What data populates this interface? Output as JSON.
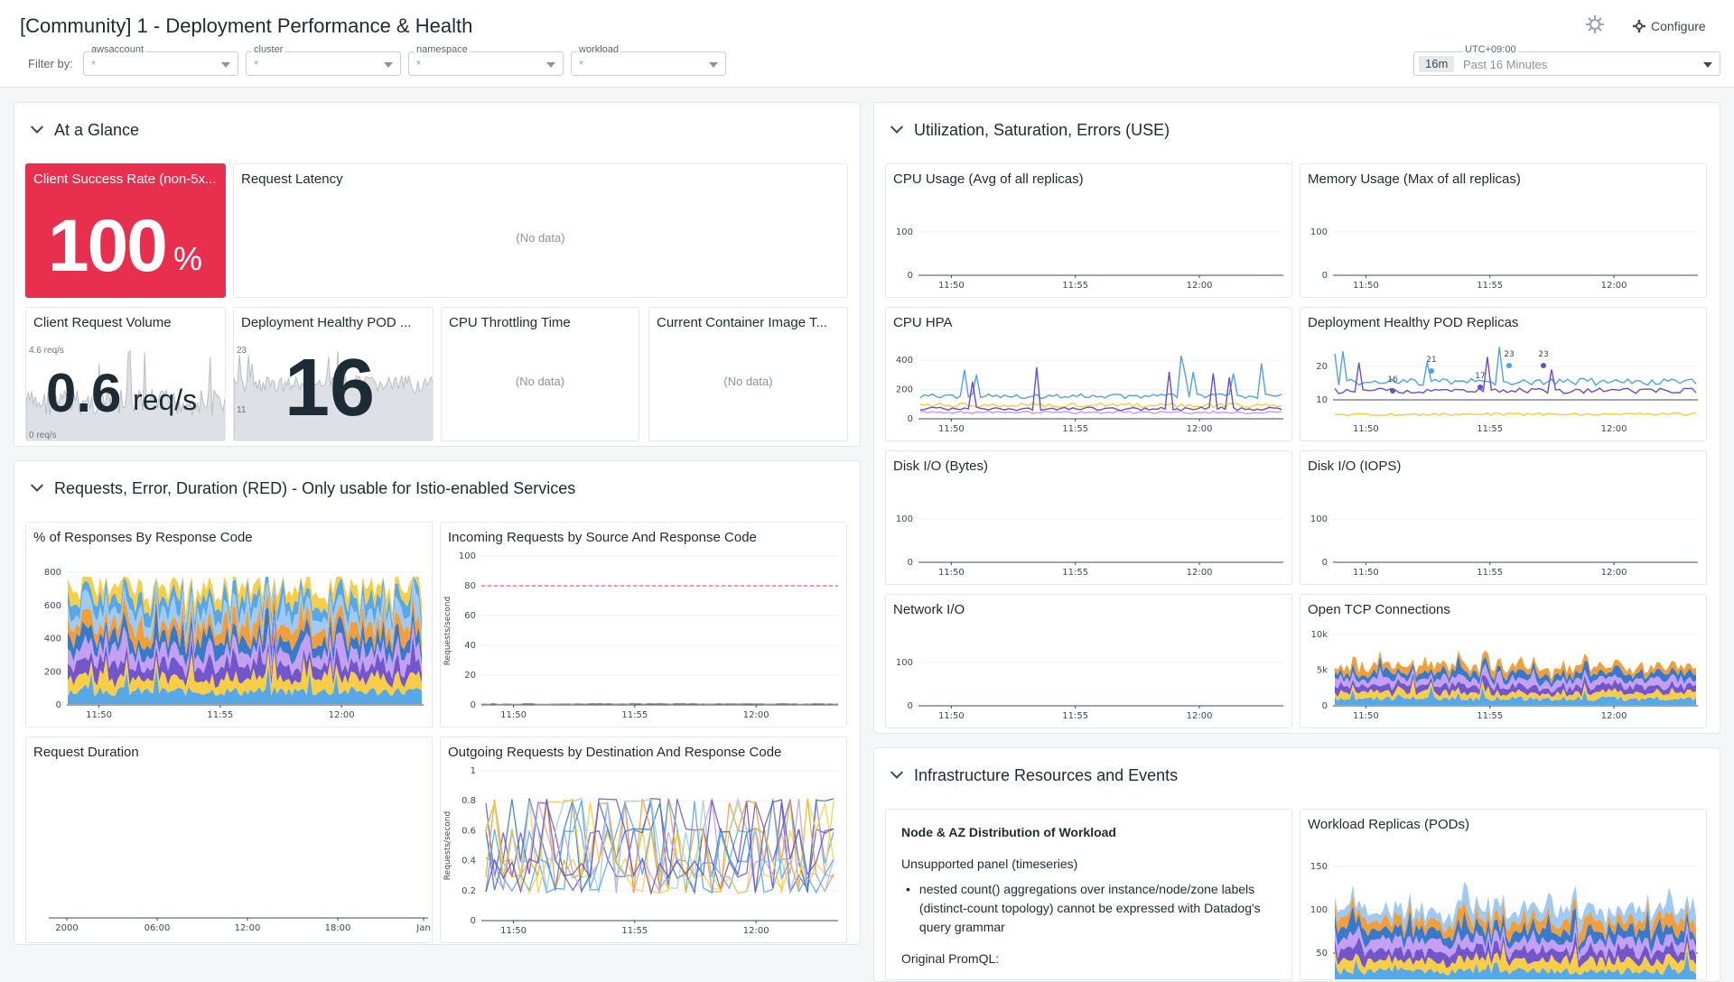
{
  "header": {
    "title": "[Community] 1 - Deployment Performance & Health",
    "configure_label": "Configure",
    "filter_by_label": "Filter by:",
    "filters": [
      {
        "label": "awsaccount",
        "value": "*"
      },
      {
        "label": "cluster",
        "value": "*"
      },
      {
        "label": "namespace",
        "value": "*"
      },
      {
        "label": "workload",
        "value": "*"
      }
    ],
    "time": {
      "timezone": "UTC+09:00",
      "badge": "16m",
      "range": "Past 16 Minutes"
    }
  },
  "groups": {
    "glance": "At a Glance",
    "red": "Requests, Error, Duration (RED) - Only usable for Istio-enabled Services",
    "use": "Utilization, Saturation, Errors (USE)",
    "infra": "Infrastructure Resources and Events"
  },
  "widgets": {
    "client_success": {
      "title": "Client Success Rate (non-5x...",
      "value": "100",
      "unit": "%"
    },
    "request_latency": {
      "title": "Request Latency",
      "nodata": "(No data)"
    },
    "client_request_volume": {
      "title": "Client Request Volume",
      "value": "0.6",
      "unit": "req/s",
      "max_label": "4.6 req/s",
      "min_label": "0 req/s"
    },
    "deployment_healthy_pod": {
      "title": "Deployment Healthy POD ...",
      "value": "16",
      "max_label": "23",
      "min_label": "11"
    },
    "cpu_throttling": {
      "title": "CPU Throttling Time",
      "nodata": "(No data)"
    },
    "container_image": {
      "title": "Current Container Image T...",
      "nodata": "(No data)"
    },
    "pct_responses": {
      "title": "% of Responses By Response Code",
      "y_ticks": [
        "800",
        "600",
        "400",
        "200",
        "0"
      ],
      "x_ticks": [
        "11:50",
        "11:55",
        "12:00"
      ]
    },
    "incoming_requests": {
      "title": "Incoming Requests by Source And Response Code",
      "y_ticks": [
        "100",
        "80",
        "60",
        "40",
        "20",
        "0"
      ],
      "x_ticks": [
        "11:50",
        "11:55",
        "12:00"
      ],
      "y_axis_label": "Requests/second"
    },
    "request_duration": {
      "title": "Request Duration",
      "x_ticks": [
        "2000",
        "06:00",
        "12:00",
        "18:00",
        "Jan"
      ]
    },
    "outgoing_requests": {
      "title": "Outgoing Requests by Destination And Response Code",
      "y_ticks": [
        "1",
        "0.8",
        "0.6",
        "0.4",
        "0.2",
        "0"
      ],
      "x_ticks": [
        "11:50",
        "11:55",
        "12:00"
      ],
      "y_axis_label": "Requests/second"
    },
    "cpu_usage": {
      "title": "CPU Usage (Avg of all replicas)",
      "y_ticks": [
        "100",
        "0"
      ],
      "x_ticks": [
        "11:50",
        "11:55",
        "12:00"
      ]
    },
    "memory_usage": {
      "title": "Memory Usage (Max of all replicas)",
      "y_ticks": [
        "100",
        "0"
      ],
      "x_ticks": [
        "11:50",
        "11:55",
        "12:00"
      ]
    },
    "cpu_hpa": {
      "title": "CPU HPA",
      "y_ticks": [
        "400",
        "200",
        "0"
      ],
      "x_ticks": [
        "11:50",
        "11:55",
        "12:00"
      ]
    },
    "deployment_healthy_replicas": {
      "title": "Deployment Healthy POD Replicas",
      "y_ticks": [
        "20",
        "10"
      ],
      "x_ticks": [
        "11:50",
        "11:55",
        "12:00"
      ],
      "peak_labels": [
        "16",
        "21",
        "17",
        "23",
        "23"
      ]
    },
    "disk_io_bytes": {
      "title": "Disk I/O (Bytes)",
      "y_ticks": [
        "100",
        "0"
      ],
      "x_ticks": [
        "11:50",
        "11:55",
        "12:00"
      ]
    },
    "disk_io_iops": {
      "title": "Disk I/O (IOPS)",
      "y_ticks": [
        "100",
        "0"
      ],
      "x_ticks": [
        "11:50",
        "11:55",
        "12:00"
      ]
    },
    "network_io": {
      "title": "Network I/O",
      "y_ticks": [
        "100",
        "0"
      ],
      "x_ticks": [
        "11:50",
        "11:55",
        "12:00"
      ]
    },
    "open_tcp": {
      "title": "Open TCP Connections",
      "y_ticks": [
        "10k",
        "5k",
        "0"
      ],
      "x_ticks": [
        "11:50",
        "11:55",
        "12:00"
      ]
    },
    "node_az": {
      "title": "Node & AZ Distribution of Workload",
      "unsupported": "Unsupported panel (timeseries)",
      "bullet": "nested count() aggregations over instance/node/zone labels (distinct-count topology) cannot be expressed with Datadog's query grammar",
      "promql_label": "Original PromQL:"
    },
    "workload_replicas": {
      "title": "Workload Replicas (PODs)",
      "y_ticks": [
        "150",
        "100",
        "50"
      ]
    }
  },
  "colors": {
    "critical": "#e8304e",
    "series": [
      "#4ea3e8",
      "#f7cb3c",
      "#6a4dc9",
      "#c29af0",
      "#2d72c8",
      "#f09a2f",
      "#98c7f5"
    ]
  }
}
